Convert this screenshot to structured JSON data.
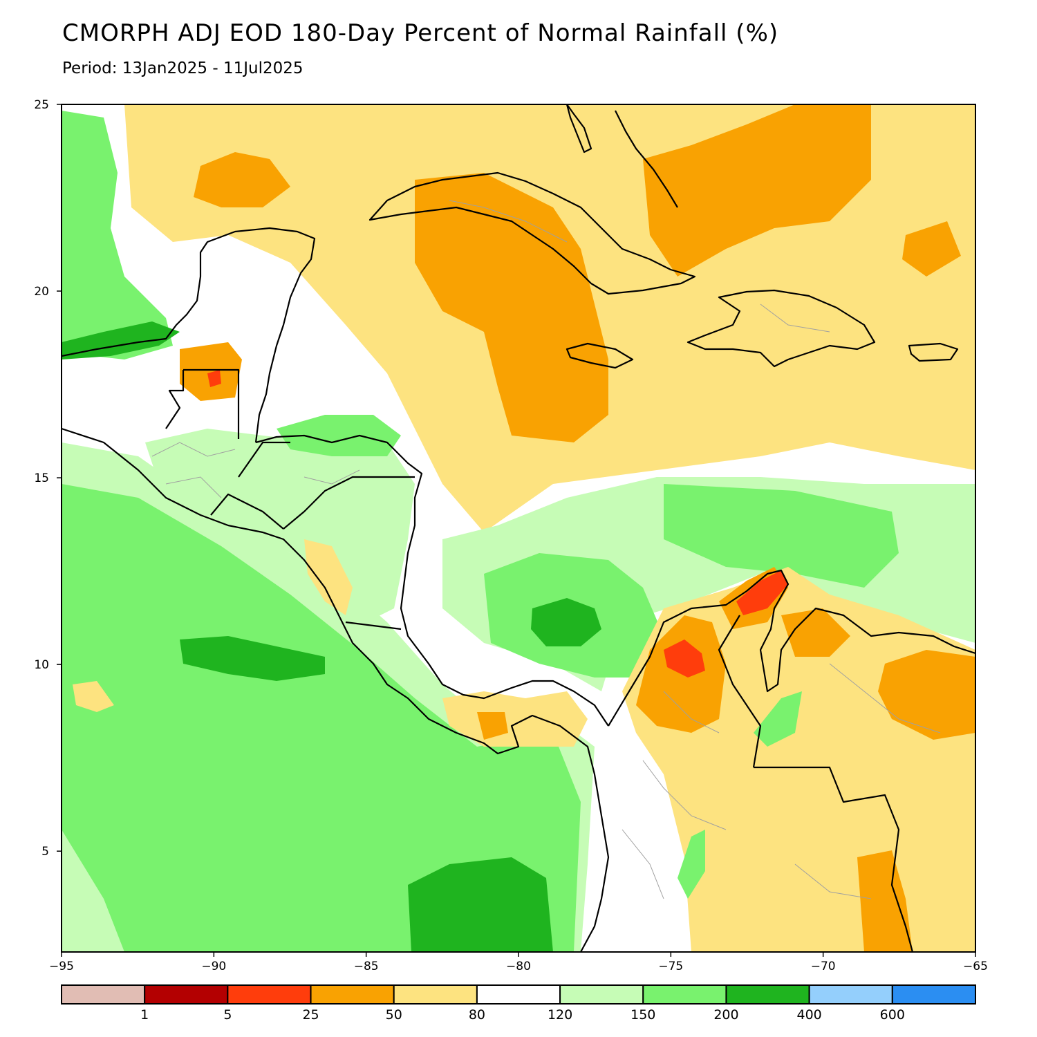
{
  "title": "CMORPH ADJ EOD 180-Day Percent of Normal Rainfall (%)",
  "subtitle": "Period: 13Jan2025 - 11Jul2025",
  "map": {
    "lon_range": [
      -95,
      -65
    ],
    "lat_range": [
      2.3,
      25
    ],
    "lon_ticks": [
      -95,
      -90,
      -85,
      -80,
      -75,
      -70,
      -65
    ],
    "lon_tick_labels": [
      "−95",
      "−90",
      "−85",
      "−80",
      "−75",
      "−70",
      "−65"
    ],
    "lat_ticks": [
      25,
      20,
      15,
      10,
      5
    ],
    "lat_tick_labels": [
      "25",
      "20",
      "15",
      "10",
      "5"
    ],
    "colors": {
      "above_120_150": "#c6fcb6",
      "above_150_200": "#79f26e",
      "above_200_400": "#1fb41f",
      "below_50_80": "#fde380",
      "below_25_50": "#f9a202",
      "below_5_25": "#ff3d0c",
      "coast": "#000000",
      "border": "#a0a0a0"
    }
  },
  "legend": {
    "colors": [
      "#e1bdb4",
      "#b30001",
      "#ff3d0c",
      "#f9a202",
      "#fde380",
      "#ffffff",
      "#c6fcb6",
      "#79f26e",
      "#1fb41f",
      "#94cffc",
      "#2b8ef2"
    ],
    "labels": [
      "1",
      "5",
      "25",
      "50",
      "80",
      "120",
      "150",
      "200",
      "400",
      "600"
    ]
  }
}
